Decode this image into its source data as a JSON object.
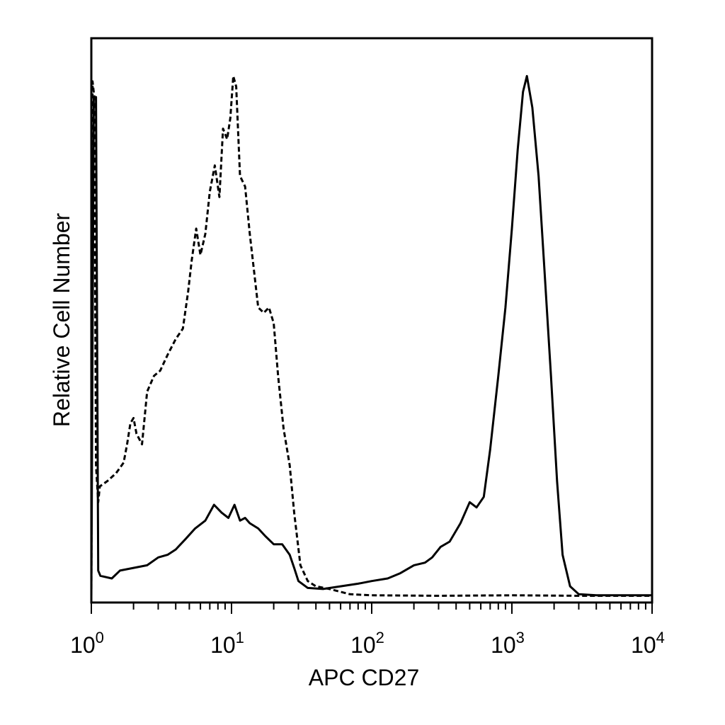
{
  "chart_data": {
    "type": "line",
    "title": "",
    "xlabel": "APC CD27",
    "ylabel": "Relative Cell Number",
    "x_scale": "log",
    "xlim": [
      1,
      10000
    ],
    "ylim": [
      0,
      100
    ],
    "grid": false,
    "legend": "none",
    "x_ticks": [
      {
        "base": "10",
        "exp": "0",
        "value": 1
      },
      {
        "base": "10",
        "exp": "1",
        "value": 10
      },
      {
        "base": "10",
        "exp": "2",
        "value": 100
      },
      {
        "base": "10",
        "exp": "3",
        "value": 1000
      },
      {
        "base": "10",
        "exp": "4",
        "value": 10000
      }
    ],
    "series": [
      {
        "style": "dashed",
        "color": "#000000",
        "points": [
          [
            1.0,
            0
          ],
          [
            1.02,
            98
          ],
          [
            1.05,
            95
          ],
          [
            1.08,
            25
          ],
          [
            1.12,
            18
          ],
          [
            1.15,
            21
          ],
          [
            1.3,
            22
          ],
          [
            1.5,
            23.5
          ],
          [
            1.7,
            25.5
          ],
          [
            1.8,
            29
          ],
          [
            1.9,
            33
          ],
          [
            2.0,
            34
          ],
          [
            2.1,
            31
          ],
          [
            2.3,
            29
          ],
          [
            2.5,
            39
          ],
          [
            2.8,
            42
          ],
          [
            3.1,
            43
          ],
          [
            3.5,
            46
          ],
          [
            4.0,
            49
          ],
          [
            4.5,
            51
          ],
          [
            4.9,
            58
          ],
          [
            5.2,
            64
          ],
          [
            5.6,
            70
          ],
          [
            6.0,
            65
          ],
          [
            6.5,
            69
          ],
          [
            7.0,
            77
          ],
          [
            7.6,
            82
          ],
          [
            8.2,
            76
          ],
          [
            8.7,
            89
          ],
          [
            9.3,
            87
          ],
          [
            9.8,
            91
          ],
          [
            10.3,
            99
          ],
          [
            10.8,
            97
          ],
          [
            11.5,
            80
          ],
          [
            12.5,
            78
          ],
          [
            13.5,
            69
          ],
          [
            15.5,
            55
          ],
          [
            17.0,
            54
          ],
          [
            18.5,
            55
          ],
          [
            20.0,
            52
          ],
          [
            21.5,
            42
          ],
          [
            23.5,
            32
          ],
          [
            26.0,
            25
          ],
          [
            28.0,
            16
          ],
          [
            31.0,
            6
          ],
          [
            35.0,
            3
          ],
          [
            40.0,
            2
          ],
          [
            50.0,
            1.5
          ],
          [
            70.0,
            0.5
          ],
          [
            100,
            0.3
          ],
          [
            300,
            0.2
          ],
          [
            1000,
            0.3
          ],
          [
            3000,
            0.2
          ],
          [
            10000,
            0.2
          ]
        ]
      },
      {
        "style": "solid",
        "color": "#000000",
        "points": [
          [
            1.0,
            0
          ],
          [
            1.04,
            95
          ],
          [
            1.08,
            95
          ],
          [
            1.12,
            5
          ],
          [
            1.16,
            4
          ],
          [
            1.4,
            3.5
          ],
          [
            1.6,
            5
          ],
          [
            2.0,
            5.5
          ],
          [
            2.5,
            6
          ],
          [
            3.0,
            7.5
          ],
          [
            3.5,
            8
          ],
          [
            4.0,
            9
          ],
          [
            4.7,
            11
          ],
          [
            5.5,
            13
          ],
          [
            6.5,
            14.5
          ],
          [
            7.5,
            17.5
          ],
          [
            8.5,
            16
          ],
          [
            9.5,
            15
          ],
          [
            10.5,
            17.5
          ],
          [
            11.5,
            14.5
          ],
          [
            12.5,
            15
          ],
          [
            13.5,
            14
          ],
          [
            15.5,
            13
          ],
          [
            17.5,
            11.5
          ],
          [
            20.0,
            10
          ],
          [
            23.0,
            10
          ],
          [
            26.0,
            8
          ],
          [
            28.0,
            5.5
          ],
          [
            30.0,
            3
          ],
          [
            35.0,
            1.7
          ],
          [
            45.0,
            1.5
          ],
          [
            60.0,
            2
          ],
          [
            80.0,
            2.5
          ],
          [
            100,
            3
          ],
          [
            130,
            3.5
          ],
          [
            160,
            4.5
          ],
          [
            200,
            6
          ],
          [
            240,
            6.5
          ],
          [
            270,
            7.5
          ],
          [
            310,
            9.5
          ],
          [
            360,
            10.5
          ],
          [
            430,
            14
          ],
          [
            500,
            18
          ],
          [
            560,
            17
          ],
          [
            630,
            19
          ],
          [
            700,
            28
          ],
          [
            800,
            42
          ],
          [
            900,
            55
          ],
          [
            1000,
            70
          ],
          [
            1100,
            85
          ],
          [
            1200,
            96
          ],
          [
            1280,
            99
          ],
          [
            1400,
            93
          ],
          [
            1550,
            80
          ],
          [
            1700,
            63
          ],
          [
            1900,
            42
          ],
          [
            2100,
            22
          ],
          [
            2300,
            8
          ],
          [
            2600,
            2
          ],
          [
            3000,
            0.5
          ],
          [
            4000,
            0.3
          ],
          [
            10000,
            0.3
          ]
        ]
      }
    ]
  }
}
